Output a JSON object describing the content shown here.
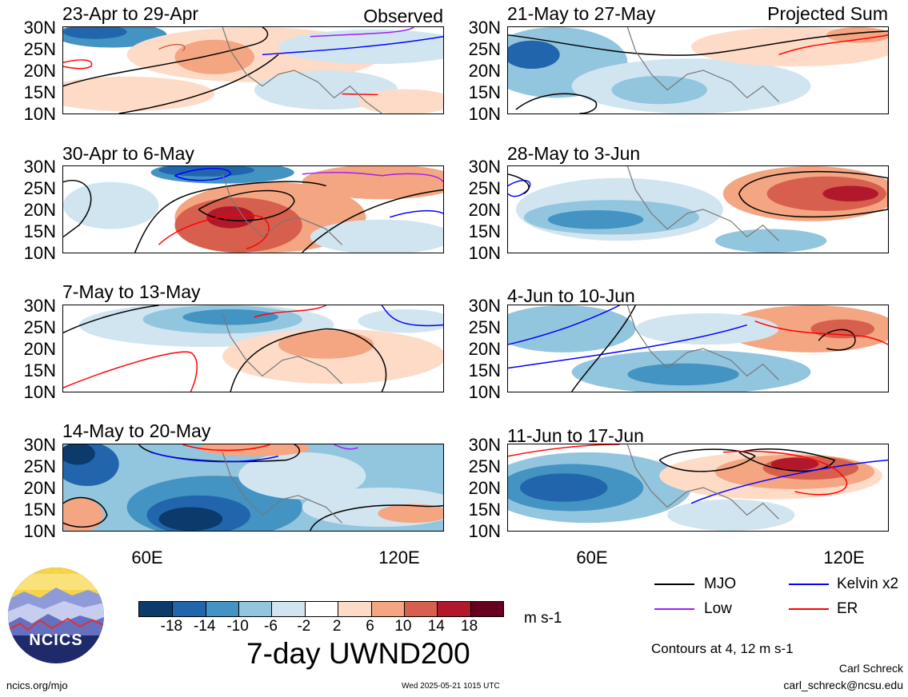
{
  "panels_left": [
    {
      "title": "23-Apr to 29-Apr",
      "tag": "Observed"
    },
    {
      "title": "30-Apr to 6-May",
      "tag": ""
    },
    {
      "title": "7-May to 13-May",
      "tag": ""
    },
    {
      "title": "14-May to 20-May",
      "tag": ""
    }
  ],
  "panels_right": [
    {
      "title": "21-May to 27-May",
      "tag": "Projected Sum"
    },
    {
      "title": "28-May to 3-Jun",
      "tag": ""
    },
    {
      "title": "4-Jun to 10-Jun",
      "tag": ""
    },
    {
      "title": "11-Jun to 17-Jun",
      "tag": ""
    }
  ],
  "lat_labels": [
    "30N",
    "25N",
    "20N",
    "15N",
    "10N"
  ],
  "lon_labels": [
    "60E",
    "120E"
  ],
  "colorbar": {
    "colors": [
      "#0b3a6b",
      "#2166ac",
      "#4393c3",
      "#92c5de",
      "#d1e5f0",
      "#ffffff",
      "#fddbc7",
      "#f4a582",
      "#d6604d",
      "#b2182b",
      "#67001f"
    ],
    "labels": [
      "-18",
      "-14",
      "-10",
      "-6",
      "-2",
      "2",
      "6",
      "10",
      "14",
      "18"
    ],
    "units": "m s-1"
  },
  "main_title": "7-day UWND200",
  "legend": {
    "mjo": {
      "label": "MJO",
      "color": "#000000"
    },
    "kelvin": {
      "label": "Kelvin x2",
      "color": "#0000ff"
    },
    "low": {
      "label": "Low",
      "color": "#a020f0"
    },
    "er": {
      "label": "ER",
      "color": "#ff0000"
    }
  },
  "contours_note": "Contours at 4, 12 m s-1",
  "author": "Carl Schreck",
  "email": "carl_schreck@ncsu.edu",
  "site": "ncics.org/mjo",
  "timestamp": "Wed 2025-05-21 1015 UTC",
  "logo_text": "NCICS"
}
